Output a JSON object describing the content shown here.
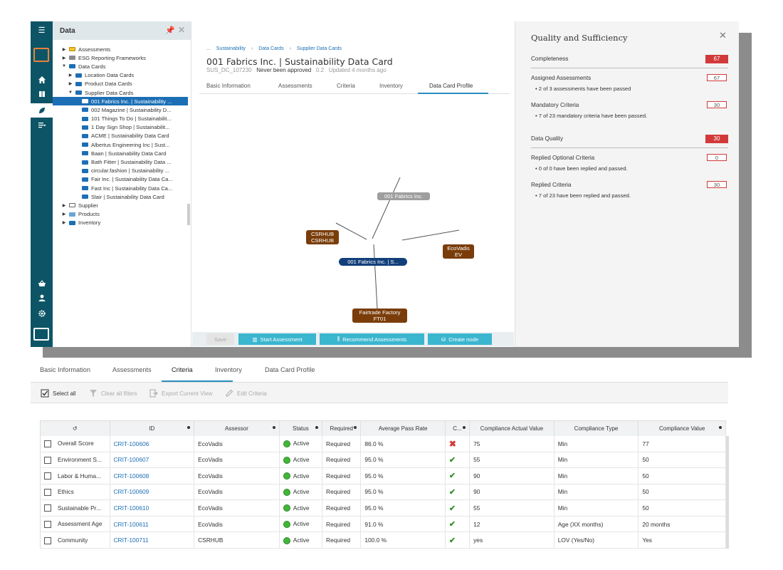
{
  "tree": {
    "title": "Data",
    "items": [
      {
        "label": "Assessments",
        "folder": "yellow",
        "caret": "▶",
        "indent": 0
      },
      {
        "label": "ESG Reporting Frameworks",
        "folder": "grey",
        "caret": "▶",
        "indent": 0
      },
      {
        "label": "Data Cards",
        "folder": "blue",
        "caret": "▼",
        "indent": 0
      },
      {
        "label": "Location Data Cards",
        "folder": "blue",
        "caret": "▶",
        "indent": 1
      },
      {
        "label": "Product Data Cards",
        "folder": "blue",
        "caret": "▶",
        "indent": 1
      },
      {
        "label": "Supplier Data Cards",
        "folder": "blue",
        "caret": "▼",
        "indent": 1
      },
      {
        "label": "001 Fabrics Inc. | Sustainability ...",
        "folder": "blue",
        "caret": "",
        "indent": 2,
        "selected": true
      },
      {
        "label": "002 Magazine | Sustainability D...",
        "folder": "blue",
        "caret": "",
        "indent": 2
      },
      {
        "label": "101 Things To Do | Sustainabilit...",
        "folder": "blue",
        "caret": "",
        "indent": 2
      },
      {
        "label": "1 Day Sign Shop | Sustainabilit...",
        "folder": "blue",
        "caret": "",
        "indent": 2
      },
      {
        "label": "ACME | Sustainability Data Card",
        "folder": "blue",
        "caret": "",
        "indent": 2
      },
      {
        "label": "Albertus Engineering Inc | Sust...",
        "folder": "blue",
        "caret": "",
        "indent": 2
      },
      {
        "label": "Baan | Sustainability Data Card",
        "folder": "blue",
        "caret": "",
        "indent": 2
      },
      {
        "label": "Bath Fitter | Sustainability Data ...",
        "folder": "blue",
        "caret": "",
        "indent": 2
      },
      {
        "label": "circular.fashion | Sustainability ...",
        "folder": "blue",
        "caret": "",
        "indent": 2
      },
      {
        "label": "Fair Inc. | Sustainability Data Ca...",
        "folder": "blue",
        "caret": "",
        "indent": 2
      },
      {
        "label": "Fast Inc | Sustainability Data Ca...",
        "folder": "blue",
        "caret": "",
        "indent": 2
      },
      {
        "label": "Slair | Sustainability Data Card",
        "folder": "blue",
        "caret": "",
        "indent": 2
      },
      {
        "label": "Supplier",
        "folder": "outline",
        "caret": "▶",
        "indent": 0
      },
      {
        "label": "Products",
        "folder": "light",
        "caret": "▶",
        "indent": 0
      },
      {
        "label": "Inventory",
        "folder": "blue",
        "caret": "▶",
        "indent": 0
      }
    ]
  },
  "breadcrumb": {
    "items": [
      "Sustainability",
      "Data Cards",
      "Supplier Data Cards"
    ],
    "lead": "...",
    "separator": "›"
  },
  "card": {
    "title": "001 Fabrics Inc. | Sustainability Data Card",
    "id": "SUS_DC_107230",
    "approval": "Never been approved",
    "version": "0.2",
    "updated": "Updated 4 months ago"
  },
  "card_tabs": [
    "Basic Information",
    "Assessments",
    "Criteria",
    "Inventory",
    "Data Card Profile"
  ],
  "graph": {
    "top": "001 Fabrics Inc.",
    "left": "CSRHUB\nCSRHUB",
    "center": "001 Fabrics Inc. | S...",
    "right": "EcoVadis\nEV",
    "bottom": "Fairtrade Factory\nFT01",
    "colors": {
      "grey": "#9e9e9e",
      "brown": "#7a3d0a",
      "center": "#123f7a"
    }
  },
  "actions": {
    "save": "Save",
    "start": "Start Assessment",
    "recommend": "Recommend Assessments",
    "create": "Create node"
  },
  "quality": {
    "title": "Quality and Sufficiency",
    "completeness": {
      "label": "Completeness",
      "value": "67"
    },
    "assigned": {
      "label": "Assigned Assessments",
      "value": "67",
      "note": "•  2 of 3 assessments have been passed"
    },
    "mandatory": {
      "label": "Mandatory Criteria",
      "value": "30",
      "note": "•  7 of 23 mandatory criteria have been passed."
    },
    "data_quality": {
      "label": "Data Quality",
      "value": "30"
    },
    "optional": {
      "label": "Replied Optional Criteria",
      "value": "0",
      "note": "•  0 of 0 have been replied and passed."
    },
    "replied": {
      "label": "Replied Criteria",
      "value": "30",
      "note": "•  7 of 23 have been replied and passed."
    },
    "badge_color": "#d23a3a"
  },
  "lower_tabs": [
    "Basic Information",
    "Assessments",
    "Criteria",
    "Inventory",
    "Data Card Profile"
  ],
  "toolbar": {
    "select_all": "Select all",
    "clear_filters": "Clear all filters",
    "export": "Export Current View",
    "edit": "Edit Criteria"
  },
  "grid": {
    "columns": [
      "ID",
      "Assessor",
      "Status",
      "Required",
      "Average Pass Rate",
      "C...",
      "Compliance Actual Value",
      "Compliance Type",
      "Compliance Value"
    ],
    "rows": [
      {
        "name": "Overall Score",
        "id": "CRIT-100606",
        "assessor": "EcoVadis",
        "status": "Active",
        "required": "Required",
        "rate": "86.0 %",
        "pass": false,
        "actual": "75",
        "type": "Min",
        "value": "77"
      },
      {
        "name": "Environment S...",
        "id": "CRIT-100607",
        "assessor": "EcoVadis",
        "status": "Active",
        "required": "Required",
        "rate": "95.0 %",
        "pass": true,
        "actual": "55",
        "type": "Min",
        "value": "50"
      },
      {
        "name": "Labor & Huma...",
        "id": "CRIT-100608",
        "assessor": "EcoVadis",
        "status": "Active",
        "required": "Required",
        "rate": "95.0 %",
        "pass": true,
        "actual": "90",
        "type": "Min",
        "value": "50"
      },
      {
        "name": "Ethics",
        "id": "CRIT-100609",
        "assessor": "EcoVadis",
        "status": "Active",
        "required": "Required",
        "rate": "95.0 %",
        "pass": true,
        "actual": "90",
        "type": "Min",
        "value": "50"
      },
      {
        "name": "Sustainable Pr...",
        "id": "CRIT-100610",
        "assessor": "EcoVadis",
        "status": "Active",
        "required": "Required",
        "rate": "95.0 %",
        "pass": true,
        "actual": "55",
        "type": "Min",
        "value": "50"
      },
      {
        "name": "Assessment Age",
        "id": "CRIT-100611",
        "assessor": "EcoVadis",
        "status": "Active",
        "required": "Required",
        "rate": "91.0 %",
        "pass": true,
        "actual": "12",
        "type": "Age (XX months)",
        "value": "20 months"
      },
      {
        "name": "Community",
        "id": "CRIT-100711",
        "assessor": "CSRHUB",
        "status": "Active",
        "required": "Required",
        "rate": "100.0 %",
        "pass": true,
        "actual": "yes",
        "type": "LOV (Yes/No)",
        "value": "Yes"
      }
    ]
  }
}
